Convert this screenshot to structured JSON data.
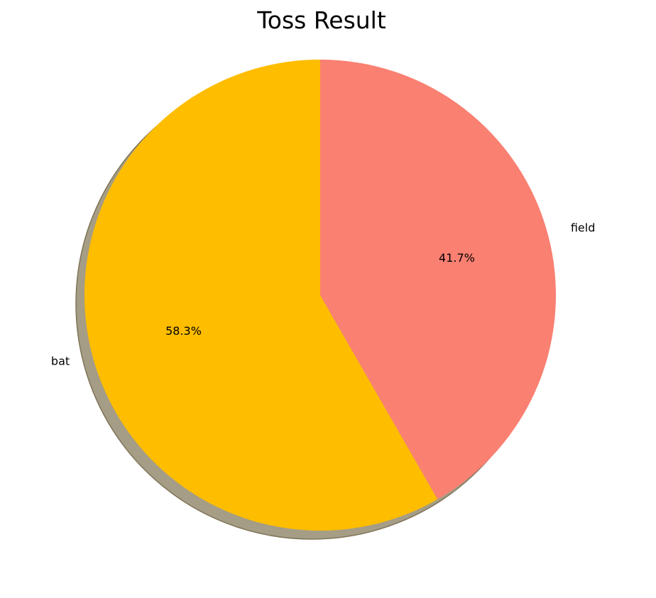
{
  "chart_data": {
    "type": "pie",
    "title": "Toss Result",
    "categories": [
      "bat",
      "field"
    ],
    "values": [
      58.3,
      41.7
    ],
    "value_labels": [
      "58.3%",
      "41.7%"
    ],
    "colors": [
      "#ffbd00",
      "#fa8072"
    ],
    "shadow": true,
    "shadow_color": "#a59d85",
    "start_angle_deg": 90,
    "direction": "counterclockwise"
  }
}
